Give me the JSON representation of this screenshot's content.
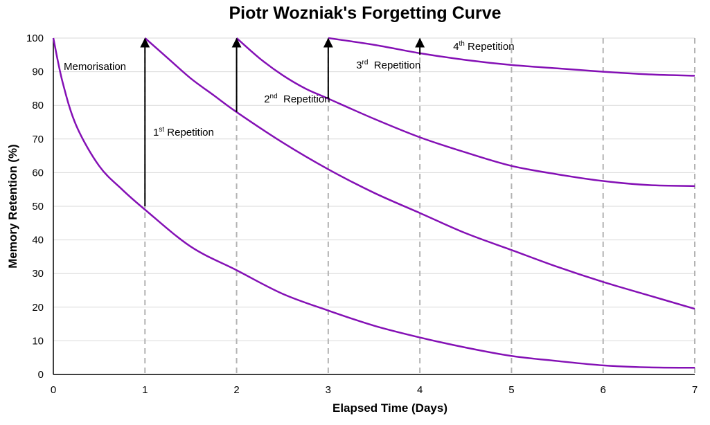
{
  "chart_data": {
    "type": "line",
    "title": "Piotr Wozniak's Forgetting Curve",
    "xlabel": "Elapsed Time (Days)",
    "ylabel": "Memory Retention (%)",
    "xlim": [
      0,
      7
    ],
    "ylim": [
      0,
      100
    ],
    "x_ticks": [
      "0",
      "1",
      "2",
      "3",
      "4",
      "5",
      "6",
      "7"
    ],
    "y_ticks": [
      "0",
      "10",
      "20",
      "30",
      "40",
      "50",
      "60",
      "70",
      "80",
      "90",
      "100"
    ],
    "grid": {
      "horizontal": true,
      "vertical_dashed_at_days": [
        1,
        2,
        3,
        4,
        5,
        6,
        7
      ]
    },
    "line_color": "#8410b5",
    "arrow_color": "#000000",
    "series": [
      {
        "x": [
          0,
          0.1,
          0.25,
          0.5,
          0.75,
          1,
          1.5,
          2,
          2.5,
          3,
          3.5,
          4,
          4.5,
          5,
          5.5,
          6,
          6.5,
          7
        ],
        "y": [
          100,
          87,
          74,
          62,
          55,
          49,
          38,
          31,
          24,
          19,
          14.5,
          11,
          8,
          5.5,
          4,
          2.7,
          2.1,
          2
        ]
      },
      {
        "x": [
          1,
          1.25,
          1.5,
          1.75,
          2,
          2.5,
          3,
          3.5,
          4,
          4.5,
          5,
          5.5,
          6,
          6.5,
          7
        ],
        "y": [
          100,
          94,
          88,
          83,
          78,
          69,
          61,
          54,
          48,
          42,
          37,
          32,
          27.5,
          23.5,
          19.5
        ]
      },
      {
        "x": [
          2,
          2.25,
          2.5,
          2.75,
          3,
          3.5,
          4,
          4.5,
          5,
          5.5,
          6,
          6.5,
          7
        ],
        "y": [
          100,
          94,
          89,
          85,
          82,
          76,
          70.5,
          66,
          62,
          59.5,
          57.5,
          56.3,
          56
        ]
      },
      {
        "x": [
          3,
          3.5,
          4,
          4.5,
          5,
          5.5,
          6,
          6.5,
          7
        ],
        "y": [
          100,
          98,
          95.5,
          93.5,
          92,
          91,
          90,
          89.2,
          88.8
        ]
      }
    ],
    "arrows": [
      {
        "x": 1,
        "from": 50,
        "to": 100
      },
      {
        "x": 2,
        "from": 78,
        "to": 100
      },
      {
        "x": 3,
        "from": 82,
        "to": 100
      },
      {
        "x": 4,
        "from": 95,
        "to": 100
      }
    ],
    "annotations": [
      {
        "text": "Memorisation",
        "sup": "",
        "tail": ""
      },
      {
        "text": "1",
        "sup": "st",
        "tail": " Repetition"
      },
      {
        "text": "2",
        "sup": "nd",
        "tail": "  Repetition"
      },
      {
        "text": "3",
        "sup": "rd",
        "tail": "  Repetition"
      },
      {
        "text": "4",
        "sup": "th",
        "tail": " Repetition"
      }
    ]
  }
}
